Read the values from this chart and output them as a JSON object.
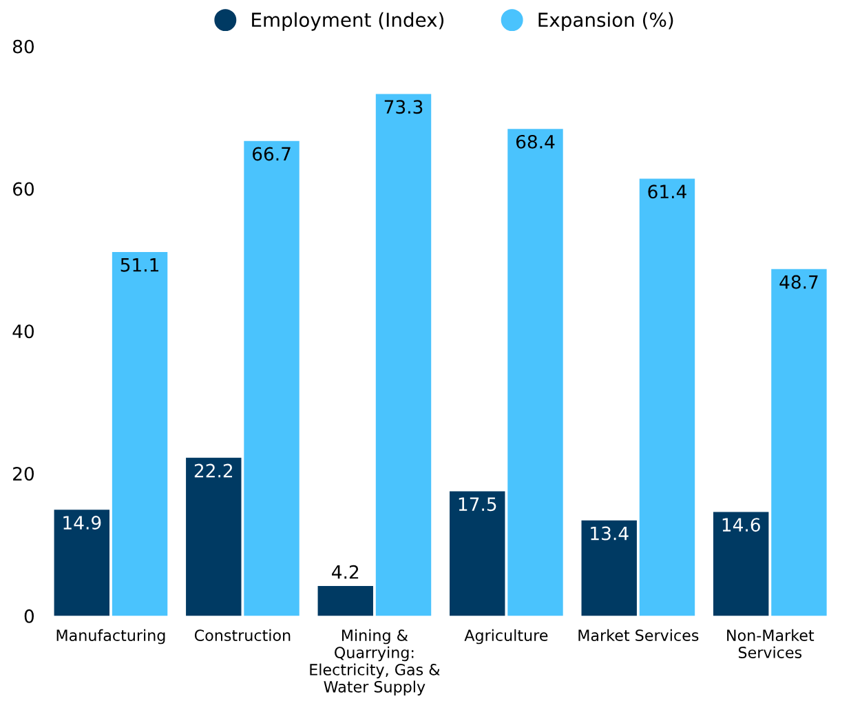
{
  "chart_data": {
    "type": "bar",
    "categories": [
      "Manufacturing",
      "Construction",
      "Mining &\nQuarrying:\nElectricity, Gas &\nWater Supply",
      "Agriculture",
      "Market Services",
      "Non-Market\nServices"
    ],
    "series": [
      {
        "name": "Employment (Index)",
        "color": "#003a63",
        "values": [
          14.9,
          22.2,
          4.2,
          17.5,
          13.4,
          14.6
        ]
      },
      {
        "name": "Expansion (%)",
        "color": "#4ac3fd",
        "values": [
          51.1,
          66.7,
          73.3,
          68.4,
          61.4,
          48.7
        ]
      }
    ],
    "ylim": [
      0,
      80
    ],
    "yticks": [
      0,
      20,
      40,
      60,
      80
    ],
    "grid": false,
    "legend": "top",
    "data_labels": true
  }
}
